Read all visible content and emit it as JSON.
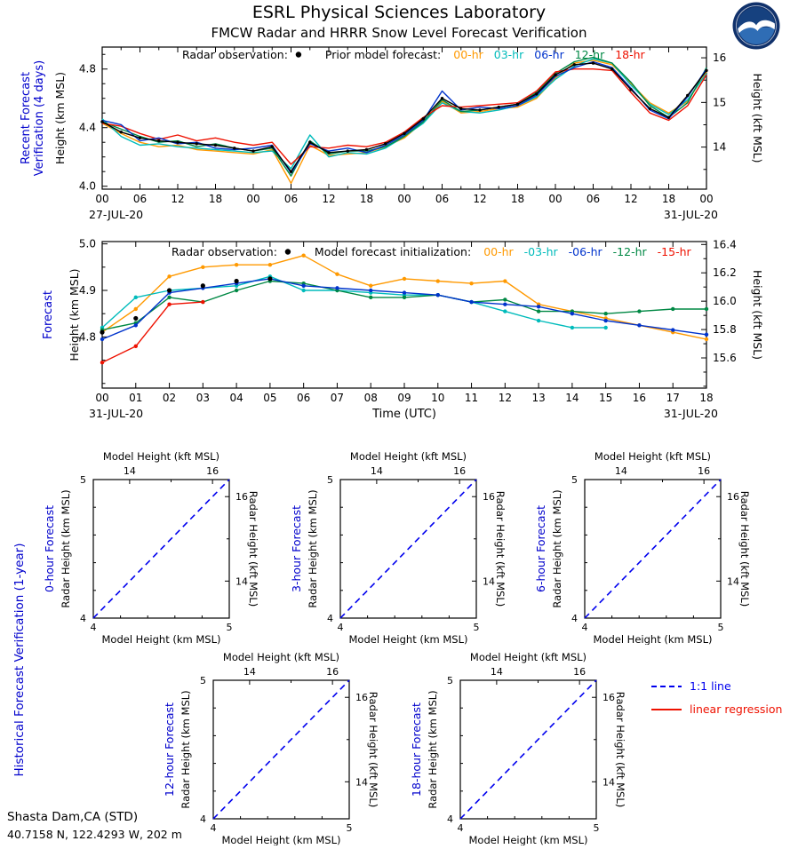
{
  "header": {
    "title": "ESRL Physical Sciences Laboratory",
    "subtitle": "FMCW Radar and HRRR Snow Level Forecast Verification"
  },
  "station": {
    "name": "Shasta Dam,CA (STD)",
    "coords": "40.7158 N, 122.4293 W, 202 m"
  },
  "colors": {
    "section_label_blue": "#0000cc",
    "radar": "#000000",
    "hr00_orange": "#ff9900",
    "hr03_cyan": "#00bbbb",
    "hr06_blue": "#0033cc",
    "hr12_green": "#008844",
    "hr18_red": "#ee1100",
    "one_to_one_blue": "#0000ee",
    "regression_red": "#ee1100"
  },
  "chart_data": [
    {
      "id": "recent-verification",
      "type": "line",
      "section_label_lines": [
        "Recent Forecast",
        "Verification (4 days)"
      ],
      "ylabel_left": "Height (km MSL)",
      "ylabel_right": "Height (kft MSL)",
      "date_left": "27-JUL-20",
      "date_right": "31-JUL-20",
      "x_start_hour": 0,
      "x_end_hour": 96,
      "x_step": 3,
      "x_major_every": 6,
      "x_minor_every": 3,
      "x_tick_labels": [
        "00",
        "06",
        "12",
        "18",
        "00",
        "06",
        "12",
        "18",
        "00",
        "06",
        "12",
        "18",
        "00",
        "06",
        "12",
        "18",
        "00"
      ],
      "ylim": [
        3.98,
        4.95
      ],
      "yticks": [
        4.0,
        4.4,
        4.8
      ],
      "ytick_labels": [
        "4.0",
        "4.4",
        "4.8"
      ],
      "y_minor_step": 0.1,
      "yticks_right_kft": [
        14,
        15,
        16
      ],
      "ytick_right_labels": [
        "14",
        "15",
        "16"
      ],
      "y_minor_step_kft": 0.5,
      "legend": {
        "parts": [
          {
            "text": "Radar observation:",
            "gap": 8
          },
          {
            "dot": true,
            "gap": 26
          },
          {
            "text": "Prior model forecast:",
            "gap": 14
          },
          {
            "text": "00-hr",
            "color": "#ff9900"
          },
          {
            "text": "03-hr",
            "color": "#00bbbb"
          },
          {
            "text": "06-hr",
            "color": "#0033cc"
          },
          {
            "text": "12-hr",
            "color": "#008844"
          },
          {
            "text": "18-hr",
            "color": "#ee1100"
          }
        ]
      },
      "series": [
        {
          "name": "00-hr",
          "color": "#ff9900",
          "values": [
            4.43,
            4.36,
            4.3,
            4.27,
            4.28,
            4.25,
            4.24,
            4.23,
            4.22,
            4.25,
            4.02,
            4.28,
            4.21,
            4.22,
            4.23,
            4.27,
            4.33,
            4.44,
            4.58,
            4.5,
            4.51,
            4.53,
            4.54,
            4.6,
            4.74,
            4.84,
            4.86,
            4.83,
            4.7,
            4.57,
            4.5,
            4.58,
            4.78
          ]
        },
        {
          "name": "03-hr",
          "color": "#00bbbb",
          "values": [
            4.46,
            4.34,
            4.28,
            4.29,
            4.27,
            4.26,
            4.25,
            4.24,
            4.23,
            4.24,
            4.12,
            4.35,
            4.2,
            4.23,
            4.22,
            4.26,
            4.34,
            4.43,
            4.57,
            4.51,
            4.5,
            4.52,
            4.55,
            4.61,
            4.73,
            4.82,
            4.87,
            4.84,
            4.69,
            4.56,
            4.49,
            4.59,
            4.77
          ]
        },
        {
          "name": "12-hr",
          "color": "#008844",
          "values": [
            4.44,
            4.39,
            4.34,
            4.3,
            4.31,
            4.27,
            4.29,
            4.26,
            4.24,
            4.26,
            4.07,
            4.31,
            4.22,
            4.24,
            4.24,
            4.27,
            4.34,
            4.44,
            4.59,
            4.51,
            4.52,
            4.54,
            4.56,
            4.64,
            4.77,
            4.85,
            4.88,
            4.84,
            4.71,
            4.55,
            4.47,
            4.57,
            4.81
          ]
        },
        {
          "name": "18-hr",
          "color": "#ee1100",
          "values": [
            4.43,
            4.41,
            4.36,
            4.32,
            4.35,
            4.31,
            4.33,
            4.3,
            4.28,
            4.3,
            4.15,
            4.27,
            4.26,
            4.28,
            4.27,
            4.3,
            4.37,
            4.47,
            4.55,
            4.54,
            4.55,
            4.56,
            4.57,
            4.65,
            4.78,
            4.8,
            4.8,
            4.79,
            4.64,
            4.5,
            4.45,
            4.55,
            4.76
          ]
        },
        {
          "name": "06-hr",
          "color": "#0033cc",
          "values": [
            4.45,
            4.42,
            4.31,
            4.33,
            4.29,
            4.3,
            4.26,
            4.25,
            4.26,
            4.28,
            4.09,
            4.29,
            4.24,
            4.26,
            4.23,
            4.28,
            4.35,
            4.45,
            4.65,
            4.52,
            4.54,
            4.53,
            4.55,
            4.62,
            4.75,
            4.81,
            4.85,
            4.81,
            4.67,
            4.52,
            4.46,
            4.61,
            4.8
          ]
        },
        {
          "name": "radar",
          "color": "#000000",
          "markers": true,
          "marker_r": 1.7,
          "values": [
            4.44,
            4.37,
            4.33,
            4.31,
            4.3,
            4.29,
            4.28,
            4.26,
            4.24,
            4.27,
            4.1,
            4.3,
            4.23,
            4.24,
            4.25,
            4.29,
            4.36,
            4.46,
            4.6,
            4.53,
            4.52,
            4.54,
            4.56,
            4.63,
            4.76,
            4.83,
            4.84,
            4.8,
            4.66,
            4.53,
            4.47,
            4.62,
            4.79
          ]
        }
      ]
    },
    {
      "id": "forecast",
      "type": "line",
      "section_label_lines": [
        "Forecast"
      ],
      "ylabel_left": "Height (km MSL)",
      "ylabel_right": "Height (kft MSL)",
      "xlabel": "Time (UTC)",
      "date_left": "31-JUL-20",
      "date_right": "31-JUL-20",
      "x_start_hour": 0,
      "x_end_hour": 18,
      "x_step": 1,
      "x_major_every": 1,
      "x_minor_every": 0,
      "x_tick_labels": [
        "00",
        "01",
        "02",
        "03",
        "04",
        "05",
        "06",
        "07",
        "08",
        "09",
        "10",
        "11",
        "12",
        "13",
        "14",
        "15",
        "16",
        "17",
        "18"
      ],
      "ylim": [
        4.69,
        5.005
      ],
      "yticks": [
        4.8,
        4.9,
        5.0
      ],
      "ytick_labels": [
        "4.8",
        "4.9",
        "5.0"
      ],
      "y_minor_step": 0.05,
      "yticks_right_kft": [
        15.6,
        15.8,
        16.0,
        16.2,
        16.4
      ],
      "ytick_right_labels": [
        "15.6",
        "15.8",
        "16.0",
        "16.2",
        "16.4"
      ],
      "y_minor_step_kft": 0.1,
      "legend": {
        "parts": [
          {
            "text": "Radar observation:",
            "gap": 8
          },
          {
            "dot": true,
            "gap": 26
          },
          {
            "text": "Model forecast initialization:",
            "gap": 14
          },
          {
            "text": "00-hr",
            "color": "#ff9900"
          },
          {
            "text": "-03-hr",
            "color": "#00bbbb"
          },
          {
            "text": "-06-hr",
            "color": "#0033cc"
          },
          {
            "text": "-12-hr",
            "color": "#008844"
          },
          {
            "text": "-15-hr",
            "color": "#ee1100"
          }
        ]
      },
      "series": [
        {
          "name": "00-hr",
          "color": "#ff9900",
          "markers": true,
          "values": [
            4.81,
            4.86,
            4.93,
            4.95,
            4.955,
            4.955,
            4.975,
            4.935,
            4.91,
            4.925,
            4.92,
            4.915,
            4.92,
            4.87,
            4.855,
            4.84,
            4.825,
            4.81,
            4.795
          ]
        },
        {
          "name": "-03-hr",
          "color": "#00bbbb",
          "markers": true,
          "values": [
            4.82,
            4.885,
            4.9,
            4.905,
            4.91,
            4.93,
            4.9,
            4.9,
            4.895,
            4.89,
            4.89,
            4.875,
            4.855,
            4.835,
            4.82,
            4.82
          ]
        },
        {
          "name": "-12-hr",
          "color": "#008844",
          "markers": true,
          "values": [
            4.815,
            4.83,
            4.885,
            4.875,
            4.9,
            4.92,
            4.915,
            4.9,
            4.885,
            4.885,
            4.89,
            4.875,
            4.88,
            4.855,
            4.855,
            4.85,
            4.855,
            4.86,
            4.86
          ]
        },
        {
          "name": "-15-hr",
          "color": "#ee1100",
          "markers": true,
          "values": [
            4.745,
            4.78,
            4.87,
            4.875
          ]
        },
        {
          "name": "-06-hr",
          "color": "#0033cc",
          "markers": true,
          "values": [
            4.795,
            4.825,
            4.895,
            4.905,
            4.915,
            4.925,
            4.91,
            4.905,
            4.9,
            4.895,
            4.89,
            4.875,
            4.87,
            4.865,
            4.85,
            4.835,
            4.825,
            4.815,
            4.805
          ]
        },
        {
          "name": "radar",
          "color": "#000000",
          "marker_only": true,
          "marker_r": 2.6,
          "values": [
            4.81,
            4.84,
            4.9,
            4.91,
            4.92,
            4.925
          ]
        }
      ]
    },
    {
      "id": "historical-verification",
      "type": "scatter",
      "section_label": "Historical Forecast Verification (1-year)",
      "plots": [
        {
          "title": "0-hour Forecast"
        },
        {
          "title": "3-hour Forecast"
        },
        {
          "title": "6-hour Forecast"
        },
        {
          "title": "12-hour Forecast"
        },
        {
          "title": "18-hour Forecast"
        }
      ],
      "xlabel_bottom": "Model Height (km MSL)",
      "xlabel_top": "Model Height (kft MSL)",
      "ylabel_left": "Radar Height (km MSL)",
      "ylabel_right": "Radar Height (kft MSL)",
      "xlim": [
        4,
        5
      ],
      "ylim": [
        4,
        5
      ],
      "km_ticks": [
        4,
        5
      ],
      "km_tick_labels": [
        "4",
        "5"
      ],
      "kft_ticks": [
        14,
        16
      ],
      "kft_tick_labels": [
        "14",
        "16"
      ],
      "one_to_one": true,
      "legend": {
        "one_to_one": "1:1 line",
        "regression": "linear regression"
      }
    }
  ]
}
